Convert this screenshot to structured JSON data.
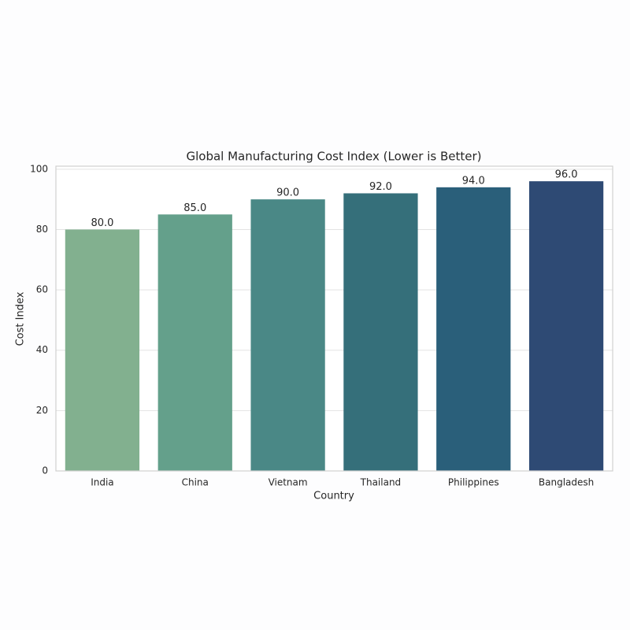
{
  "chart_data": {
    "type": "bar",
    "title": "Global Manufacturing Cost Index (Lower is Better)",
    "x_label": "Country",
    "y_label": "Cost Index",
    "categories": [
      "India",
      "China",
      "Vietnam",
      "Thailand",
      "Philippines",
      "Bangladesh"
    ],
    "values": [
      80,
      85,
      90,
      92,
      94,
      96
    ],
    "value_labels": [
      "80.0",
      "85.0",
      "90.0",
      "92.0",
      "94.0",
      "96.0"
    ],
    "colors": [
      "#82b08f",
      "#64a08b",
      "#4a8886",
      "#356f7a",
      "#2a5f7a",
      "#2e4a74"
    ],
    "ylim": [
      0,
      101
    ],
    "yticks": [
      0,
      20,
      40,
      60,
      80,
      100
    ],
    "grid": true
  }
}
